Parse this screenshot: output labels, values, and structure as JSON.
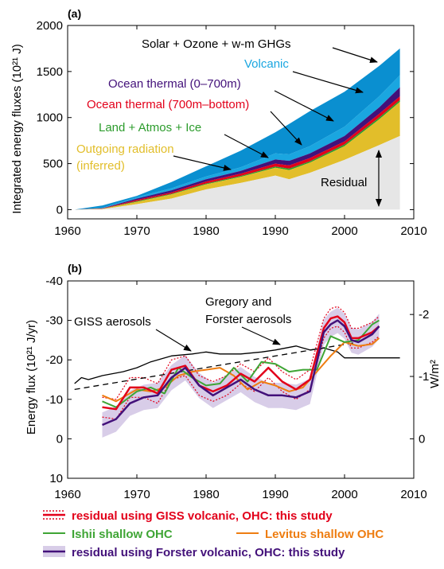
{
  "chart_data": [
    {
      "panel_label": "(a)",
      "type": "area",
      "ylabel": "Integrated energy fluxes (10²¹ J)",
      "xlim": [
        1960,
        2010
      ],
      "ylim": [
        -100,
        2000
      ],
      "xticks": [
        1960,
        1970,
        1980,
        1990,
        2000,
        2010
      ],
      "yticks": [
        0,
        500,
        1000,
        1500,
        2000
      ],
      "x": [
        1961,
        1965,
        1970,
        1975,
        1980,
        1985,
        1990,
        1992,
        1995,
        2000,
        2005,
        2008
      ],
      "layers": [
        {
          "name": "Residual",
          "color": "#e6e6e6",
          "top": [
            0,
            5,
            60,
            120,
            220,
            290,
            370,
            330,
            400,
            540,
            700,
            800
          ]
        },
        {
          "name": "Outgoing radiation (inferred)",
          "color": "#e2be2a",
          "top": [
            0,
            8,
            85,
            165,
            275,
            355,
            455,
            430,
            510,
            690,
            980,
            1170
          ]
        },
        {
          "name": "Land + Atmos + Ice",
          "color": "#2c9c2c",
          "top": [
            0,
            9,
            92,
            172,
            284,
            366,
            468,
            445,
            525,
            708,
            1000,
            1190
          ]
        },
        {
          "name": "Ocean thermal (700m–bottom)",
          "color": "#e2001a",
          "top": [
            0,
            12,
            105,
            188,
            305,
            390,
            500,
            480,
            560,
            740,
            1040,
            1230
          ]
        },
        {
          "name": "Ocean thermal (0–700m)",
          "color": "#43117a",
          "top": [
            0,
            15,
            120,
            210,
            330,
            420,
            545,
            530,
            610,
            800,
            1110,
            1330
          ]
        },
        {
          "name": "Volcanic",
          "color": "#1aa6e0",
          "top": [
            0,
            18,
            135,
            232,
            360,
            460,
            610,
            600,
            690,
            900,
            1230,
            1460
          ]
        },
        {
          "name": "Solar + Ozone + w-m GHGs",
          "color": "#0a8fd0",
          "top": [
            0,
            45,
            150,
            300,
            470,
            640,
            840,
            930,
            1070,
            1280,
            1560,
            1750
          ]
        }
      ],
      "annotations": [
        "Solar + Ozone + w-m GHGs",
        "Volcanic",
        "Ocean thermal (0–700m)",
        "Ocean thermal (700m–bottom)",
        "Land + Atmos + Ice",
        "Outgoing radiation",
        "(inferred)",
        "Residual"
      ]
    },
    {
      "panel_label": "(b)",
      "type": "line",
      "ylabel": "Energy flux (10²¹ J/yr)",
      "ylabel_right": "W/m²",
      "xlim": [
        1960,
        2010
      ],
      "ylim": [
        10,
        -40
      ],
      "xticks": [
        1960,
        1970,
        1980,
        1990,
        2000,
        2010
      ],
      "yticks": [
        -40,
        -30,
        -20,
        -10,
        0,
        10
      ],
      "right_ticks": [
        {
          "label": "-2",
          "value": -31.5
        },
        {
          "label": "-1",
          "value": -15.8
        },
        {
          "label": "0",
          "value": 0
        }
      ],
      "series": [
        {
          "name": "GISS aerosols",
          "color": "#000000",
          "style": "solid",
          "x": [
            1961,
            1962,
            1963,
            1965,
            1968,
            1970,
            1972,
            1975,
            1978,
            1980,
            1982,
            1985,
            1988,
            1990,
            1993,
            1995,
            1997,
            1999,
            2000,
            2002,
            2005,
            2008
          ],
          "y": [
            -14,
            -15.5,
            -15,
            -16,
            -17,
            -18,
            -19.5,
            -21,
            -21.5,
            -22,
            -21.5,
            -21.5,
            -22,
            -22.5,
            -23.5,
            -22.5,
            -23,
            -22,
            -20.5,
            -20.5,
            -20.5,
            -20.5
          ]
        },
        {
          "name": "Gregory and Forster aerosols",
          "color": "#000000",
          "style": "dashed",
          "x": [
            1961,
            2002
          ],
          "y": [
            -12.5,
            -24.5
          ]
        },
        {
          "name": "Ishii shallow OHC",
          "color": "#3fa535",
          "style": "solid",
          "x": [
            1965,
            1967,
            1970,
            1972,
            1974,
            1976,
            1978,
            1980,
            1982,
            1984,
            1986,
            1988,
            1990,
            1992,
            1994,
            1996,
            1998,
            2000,
            2002,
            2004,
            2005
          ],
          "y": [
            -9.5,
            -8,
            -12,
            -13,
            -11.5,
            -18,
            -15.5,
            -13.5,
            -14,
            -18,
            -14.5,
            -19.5,
            -19,
            -17,
            -17.5,
            -17.5,
            -26,
            -24.5,
            -25,
            -29,
            -30
          ]
        },
        {
          "name": "Levitus shallow OHC",
          "color": "#ee7d11",
          "style": "solid",
          "x": [
            1965,
            1967,
            1970,
            1972,
            1974,
            1976,
            1978,
            1980,
            1982,
            1984,
            1986,
            1988,
            1990,
            1992,
            1994,
            1996,
            1998,
            2000,
            2002,
            2004,
            2005
          ],
          "y": [
            -11,
            -9.5,
            -12.5,
            -12,
            -13,
            -16,
            -17,
            -17.5,
            -18,
            -16,
            -12.5,
            -14.5,
            -13.5,
            -12,
            -13,
            -17,
            -21,
            -24.5,
            -23.5,
            -24,
            -25.5
          ]
        },
        {
          "name": "residual using GISS volcanic, OHC: this study",
          "color": "#e2001a",
          "style": "solid",
          "band": true,
          "x": [
            1965,
            1967,
            1969,
            1971,
            1973,
            1975,
            1977,
            1979,
            1981,
            1983,
            1985,
            1987,
            1989,
            1991,
            1993,
            1995,
            1997,
            1998,
            1999,
            2000,
            2001,
            2002,
            2004,
            2005
          ],
          "y": [
            -8,
            -7.5,
            -13,
            -13,
            -11.5,
            -17.5,
            -18.5,
            -13.5,
            -12,
            -13.5,
            -16.5,
            -14.5,
            -18,
            -14.5,
            -12.5,
            -15,
            -28,
            -30.5,
            -31,
            -29.5,
            -25.5,
            -25.5,
            -27,
            -28.5
          ]
        },
        {
          "name": "residual using Forster volcanic, OHC: this study",
          "color": "#43117a",
          "style": "solid",
          "band": true,
          "x": [
            1965,
            1967,
            1969,
            1971,
            1973,
            1975,
            1977,
            1979,
            1981,
            1983,
            1985,
            1987,
            1989,
            1991,
            1993,
            1995,
            1997,
            1998,
            1999,
            2000,
            2001,
            2002,
            2004,
            2005
          ],
          "y": [
            -3.5,
            -5,
            -9,
            -10.5,
            -11,
            -15.5,
            -18,
            -13.5,
            -11,
            -13,
            -15,
            -12.5,
            -11,
            -11,
            -10.5,
            -12,
            -27,
            -29,
            -30,
            -28.5,
            -25,
            -24.5,
            -26.5,
            -28.5
          ]
        }
      ],
      "annotations": [
        "GISS aerosols",
        "Gregory and",
        "Forster aerosols"
      ],
      "legend": [
        {
          "label": "residual using GISS volcanic, OHC: this study",
          "color": "#e2001a",
          "kind": "dotted-band"
        },
        {
          "label": "Ishii shallow OHC",
          "color": "#3fa535",
          "kind": "line"
        },
        {
          "label": "Levitus shallow OHC",
          "color": "#ee7d11",
          "kind": "line"
        },
        {
          "label": "residual using Forster volcanic, OHC: this study",
          "color": "#43117a",
          "kind": "shaded-band"
        }
      ]
    }
  ]
}
